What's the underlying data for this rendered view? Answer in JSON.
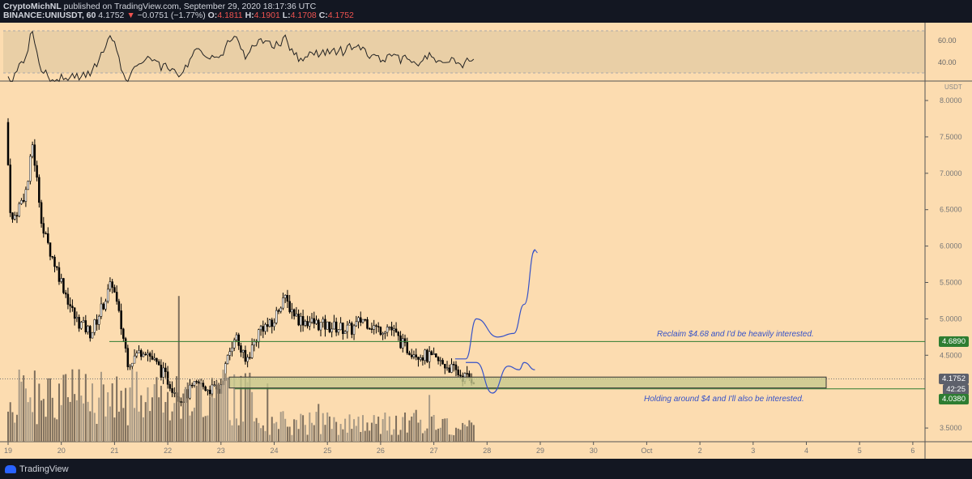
{
  "header": {
    "author": "CryptoMichNL",
    "published": "published on TradingView.com, September 29, 2020 18:17:36 UTC",
    "symbol": "BINANCE:UNIUSDT, 60",
    "last": "4.1752",
    "arrow": "▼",
    "change": "−0.0751 (−1.77%)",
    "o_label": "O:",
    "o": "4.1811",
    "h_label": "H:",
    "h": "4.1901",
    "l_label": "L:",
    "l": "4.1708",
    "c_label": "C:",
    "c": "4.1752"
  },
  "footer": {
    "brand": "TradingView"
  },
  "labels": {
    "currency": "USDT",
    "reclaim": "4.6890",
    "last": "4.1752",
    "countdown": "42:25",
    "holding": "4.0380",
    "rsi60": "60.00",
    "rsi40": "40.00"
  },
  "notes": {
    "reclaim": "Reclaim $4.68 and I'd be heavily interested.",
    "holding": "Holding around $4 and I'll also be interested."
  },
  "colors": {
    "bg": "#fcdcb0",
    "up": "#ffffff",
    "down": "#000000",
    "green": "#2e7d32",
    "blue": "#3652c8"
  },
  "chart_data": {
    "type": "candlestick",
    "title": "UNIUSDT 60",
    "ylabel": "USDT",
    "ylim": [
      3.25,
      8.3
    ],
    "yticks": [
      "8.0000",
      "7.5000",
      "7.0000",
      "6.5000",
      "6.0000",
      "5.5000",
      "5.0000",
      "4.5000",
      "3.5000"
    ],
    "xticks": [
      "19",
      "20",
      "21",
      "22",
      "23",
      "24",
      "25",
      "26",
      "27",
      "28",
      "29",
      "30",
      "Oct",
      "2",
      "3",
      "4",
      "5",
      "6"
    ],
    "price_path": [
      [
        0,
        7.7
      ],
      [
        0.1,
        6.3
      ],
      [
        0.4,
        6.8
      ],
      [
        0.5,
        7.4
      ],
      [
        0.7,
        6.2
      ],
      [
        1.0,
        5.6
      ],
      [
        1.3,
        5.0
      ],
      [
        1.6,
        4.8
      ],
      [
        2.0,
        5.5
      ],
      [
        2.3,
        4.4
      ],
      [
        2.6,
        4.6
      ],
      [
        3.0,
        4.2
      ],
      [
        3.3,
        3.9
      ],
      [
        3.6,
        4.1
      ],
      [
        4.0,
        4.0
      ],
      [
        4.3,
        4.8
      ],
      [
        4.5,
        4.4
      ],
      [
        4.8,
        4.9
      ],
      [
        5.0,
        4.9
      ],
      [
        5.2,
        5.3
      ],
      [
        5.5,
        5.0
      ],
      [
        6.0,
        4.9
      ],
      [
        6.5,
        4.85
      ],
      [
        6.7,
        5.0
      ],
      [
        7.0,
        4.85
      ],
      [
        7.2,
        4.9
      ],
      [
        7.5,
        4.6
      ],
      [
        8.0,
        4.45
      ],
      [
        8.3,
        4.35
      ],
      [
        8.6,
        4.2
      ],
      [
        8.8,
        4.175
      ]
    ],
    "levels": [
      4.689,
      4.038
    ],
    "zone": [
      4.05,
      4.2
    ],
    "projection_up": [
      [
        8.4,
        4.45
      ],
      [
        8.6,
        4.45
      ],
      [
        8.8,
        5.0
      ],
      [
        9.2,
        4.75
      ],
      [
        9.5,
        4.8
      ],
      [
        9.7,
        5.2
      ],
      [
        9.9,
        5.95
      ]
    ],
    "projection_side": [
      [
        8.6,
        4.4
      ],
      [
        8.8,
        4.4
      ],
      [
        9.1,
        3.98
      ],
      [
        9.4,
        4.35
      ],
      [
        9.6,
        4.3
      ],
      [
        9.7,
        4.4
      ],
      [
        9.9,
        4.3
      ]
    ],
    "rsi_levels": [
      60,
      40
    ]
  }
}
